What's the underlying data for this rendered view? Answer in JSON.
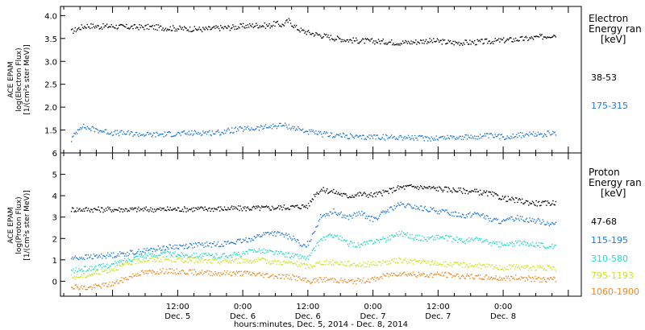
{
  "chart_data": [
    {
      "type": "scatter",
      "panel": "electron",
      "ylabel": [
        "ACE EPAM",
        "log(Electron Flux)",
        "[1/(cm²s ster MeV)]"
      ],
      "ylim": [
        1.0,
        4.2
      ],
      "y_ticks": [
        1.5,
        2.0,
        2.5,
        3.0,
        3.5,
        4.0
      ],
      "y_tick_labels": [
        "1.5",
        "2.0",
        "2.5",
        "3.0",
        "3.5",
        "4.0"
      ],
      "legend_title": [
        "Electron",
        "Energy ran",
        "[keV]"
      ],
      "series": [
        {
          "name": "38-53",
          "color": "#000000",
          "x": [
            -0.32,
            -0.25,
            -0.2,
            -0.1,
            0.0,
            0.1,
            0.2,
            0.3,
            0.4,
            0.5,
            0.6,
            0.7,
            0.8,
            0.9,
            1.0,
            1.1,
            1.2,
            1.25,
            1.3,
            1.35,
            1.4,
            1.45,
            1.5,
            1.6,
            1.7,
            1.8,
            1.9,
            2.0,
            2.1,
            2.2,
            2.3,
            2.4,
            2.5,
            2.6,
            2.7,
            2.8,
            2.9,
            3.0,
            3.1,
            3.2,
            3.3,
            3.4
          ],
          "y": [
            3.66,
            3.75,
            3.79,
            3.77,
            3.78,
            3.76,
            3.76,
            3.76,
            3.74,
            3.73,
            3.72,
            3.71,
            3.74,
            3.75,
            3.78,
            3.8,
            3.79,
            3.84,
            3.8,
            3.9,
            3.76,
            3.68,
            3.64,
            3.58,
            3.52,
            3.48,
            3.46,
            3.45,
            3.44,
            3.42,
            3.43,
            3.46,
            3.45,
            3.42,
            3.42,
            3.43,
            3.45,
            3.47,
            3.49,
            3.51,
            3.55,
            3.6
          ]
        },
        {
          "name": "175-315",
          "color": "#1f78d6",
          "x": [
            -0.32,
            -0.25,
            -0.2,
            -0.1,
            0.0,
            0.1,
            0.2,
            0.3,
            0.4,
            0.5,
            0.6,
            0.7,
            0.8,
            0.9,
            1.0,
            1.1,
            1.2,
            1.3,
            1.4,
            1.5,
            1.6,
            1.7,
            1.8,
            1.9,
            2.0,
            2.1,
            2.2,
            2.3,
            2.4,
            2.5,
            2.6,
            2.7,
            2.8,
            2.9,
            3.0,
            3.1,
            3.2,
            3.3,
            3.4
          ],
          "y": [
            1.3,
            1.6,
            1.56,
            1.5,
            1.45,
            1.44,
            1.42,
            1.41,
            1.42,
            1.43,
            1.44,
            1.46,
            1.45,
            1.5,
            1.53,
            1.55,
            1.58,
            1.62,
            1.55,
            1.47,
            1.42,
            1.4,
            1.38,
            1.34,
            1.37,
            1.35,
            1.36,
            1.34,
            1.33,
            1.34,
            1.36,
            1.35,
            1.37,
            1.38,
            1.36,
            1.4,
            1.41,
            1.42,
            1.44
          ]
        }
      ]
    },
    {
      "type": "scatter",
      "panel": "proton",
      "ylabel": [
        "ACE EPAM",
        "log(Proton Flux)",
        "[1/(cm²s ster MeV)]"
      ],
      "ylim": [
        -0.7,
        6.0
      ],
      "y_ticks": [
        0,
        1,
        2,
        3,
        4,
        5,
        6
      ],
      "y_tick_labels": [
        "0",
        "1",
        "2",
        "3",
        "4",
        "5",
        "6"
      ],
      "legend_title": [
        "Proton",
        "Energy ran",
        "[keV]"
      ],
      "series": [
        {
          "name": "47-68",
          "color": "#000000",
          "x": [
            -0.32,
            0.0,
            0.3,
            0.6,
            0.9,
            1.2,
            1.4,
            1.5,
            1.55,
            1.6,
            1.7,
            1.8,
            1.9,
            2.0,
            2.1,
            2.2,
            2.3,
            2.4,
            2.5,
            2.6,
            2.7,
            2.8,
            2.9,
            3.0,
            3.1,
            3.2,
            3.3,
            3.4
          ],
          "y": [
            3.38,
            3.38,
            3.38,
            3.4,
            3.42,
            3.45,
            3.5,
            3.55,
            4.1,
            4.3,
            4.2,
            4.0,
            4.1,
            4.05,
            4.2,
            4.4,
            4.45,
            4.4,
            4.35,
            4.3,
            4.25,
            4.2,
            4.1,
            3.9,
            3.8,
            3.7,
            3.65,
            3.7
          ]
        },
        {
          "name": "115-195",
          "color": "#1f78d6",
          "x": [
            -0.32,
            -0.2,
            0.0,
            0.2,
            0.4,
            0.6,
            0.8,
            1.0,
            1.1,
            1.2,
            1.3,
            1.4,
            1.45,
            1.5,
            1.6,
            1.7,
            1.8,
            1.9,
            2.0,
            2.1,
            2.2,
            2.3,
            2.4,
            2.5,
            2.6,
            2.7,
            2.8,
            2.9,
            3.0,
            3.1,
            3.2,
            3.3,
            3.4
          ],
          "y": [
            1.1,
            1.15,
            1.25,
            1.4,
            1.6,
            1.7,
            1.75,
            1.9,
            2.1,
            2.3,
            2.2,
            2.0,
            1.6,
            1.8,
            3.1,
            3.3,
            3.0,
            3.2,
            2.9,
            3.3,
            3.6,
            3.5,
            3.4,
            3.3,
            3.2,
            3.1,
            3.2,
            2.9,
            2.8,
            3.0,
            2.9,
            2.8,
            2.7
          ]
        },
        {
          "name": "310-580",
          "color": "#26d9c7",
          "x": [
            -0.32,
            -0.2,
            0.0,
            0.2,
            0.4,
            0.6,
            0.8,
            1.0,
            1.1,
            1.2,
            1.3,
            1.4,
            1.5,
            1.6,
            1.7,
            1.8,
            1.9,
            2.0,
            2.1,
            2.2,
            2.3,
            2.4,
            2.5,
            2.6,
            2.7,
            2.8,
            2.9,
            3.0,
            3.1,
            3.2,
            3.3,
            3.4
          ],
          "y": [
            0.5,
            0.6,
            0.8,
            1.2,
            1.3,
            1.25,
            1.2,
            1.3,
            1.5,
            1.4,
            1.3,
            1.2,
            1.1,
            2.0,
            2.2,
            1.8,
            1.7,
            1.9,
            2.0,
            2.3,
            2.1,
            2.0,
            2.1,
            2.0,
            1.9,
            2.0,
            1.8,
            1.7,
            1.8,
            1.8,
            1.7,
            1.6
          ]
        },
        {
          "name": "795-1193",
          "color": "#c8e620",
          "x": [
            -0.32,
            -0.2,
            0.0,
            0.2,
            0.4,
            0.6,
            0.8,
            1.0,
            1.1,
            1.2,
            1.3,
            1.4,
            1.5,
            1.6,
            1.7,
            1.8,
            1.9,
            2.0,
            2.1,
            2.2,
            2.3,
            2.4,
            2.5,
            2.6,
            2.7,
            2.8,
            2.9,
            3.0,
            3.1,
            3.2,
            3.3,
            3.4
          ],
          "y": [
            0.2,
            0.3,
            0.6,
            1.0,
            1.05,
            1.0,
            0.95,
            1.0,
            1.0,
            0.95,
            0.9,
            0.85,
            0.7,
            0.9,
            0.9,
            0.85,
            0.8,
            0.85,
            0.9,
            1.0,
            0.95,
            0.9,
            0.85,
            0.8,
            0.8,
            0.75,
            0.7,
            0.65,
            0.7,
            0.65,
            0.65,
            0.6
          ]
        },
        {
          "name": "1060-1900",
          "color": "#ee8a22",
          "x": [
            -0.32,
            -0.2,
            0.0,
            0.2,
            0.4,
            0.6,
            0.8,
            1.0,
            1.1,
            1.2,
            1.3,
            1.4,
            1.5,
            1.6,
            1.7,
            1.8,
            1.9,
            2.0,
            2.1,
            2.2,
            2.3,
            2.4,
            2.5,
            2.6,
            2.7,
            2.8,
            2.9,
            3.0,
            3.1,
            3.2,
            3.3,
            3.4
          ],
          "y": [
            -0.2,
            -0.3,
            -0.1,
            0.4,
            0.5,
            0.45,
            0.4,
            0.4,
            0.35,
            0.3,
            0.25,
            0.2,
            0.0,
            0.1,
            0.1,
            0.0,
            0.05,
            0.1,
            0.3,
            0.4,
            0.35,
            0.3,
            0.35,
            0.3,
            0.25,
            0.2,
            0.2,
            0.15,
            0.2,
            0.15,
            0.1,
            0.1
          ]
        }
      ]
    }
  ],
  "x_axis": {
    "tick_labels": [
      {
        "x": 0.5,
        "time": "12:00",
        "date": "Dec. 5"
      },
      {
        "x": 1.0,
        "time": "0:00",
        "date": "Dec. 6"
      },
      {
        "x": 1.5,
        "time": "12:00",
        "date": "Dec. 6"
      },
      {
        "x": 2.0,
        "time": "0:00",
        "date": "Dec. 7"
      },
      {
        "x": 2.5,
        "time": "12:00",
        "date": "Dec. 7"
      },
      {
        "x": 3.0,
        "time": "0:00",
        "date": "Dec. 8"
      }
    ],
    "title": "hours:minutes, Dec.  5, 2014 - Dec.  8, 2014"
  }
}
